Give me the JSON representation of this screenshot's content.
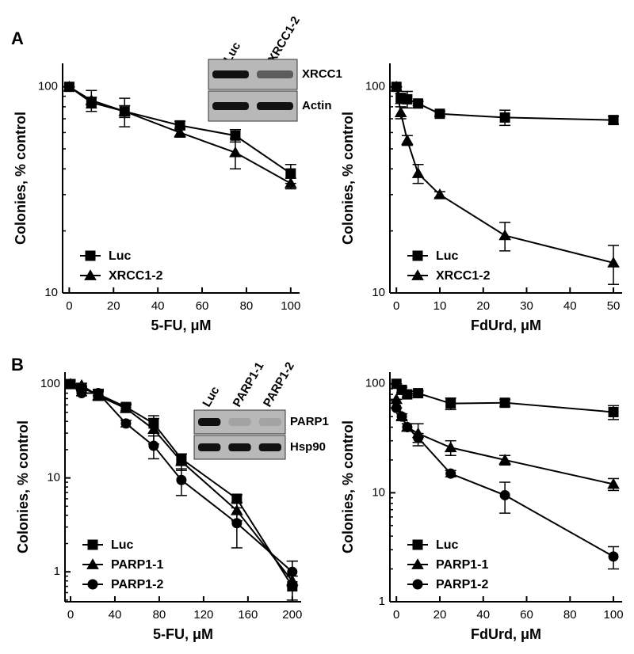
{
  "chart_data": [
    {
      "type": "line",
      "panel": "A",
      "x_label": "5-FU, μM",
      "y_label": "Colonies, % control",
      "log_y": true,
      "legend": "lower left",
      "x": [
        0,
        10,
        25,
        50,
        75,
        100
      ],
      "series": [
        {
          "name": "Luc",
          "marker": "square",
          "color": "#000000",
          "values": [
            100,
            84,
            76,
            65,
            58,
            38
          ],
          "errors": [
            0,
            5,
            12,
            3,
            4,
            4
          ]
        },
        {
          "name": "XRCC1-2",
          "marker": "triangle",
          "color": "#000000",
          "values": [
            100,
            86,
            76,
            60,
            48,
            34
          ],
          "errors": [
            0,
            10,
            5,
            3,
            8,
            2
          ]
        }
      ],
      "xlim": [
        -3,
        104
      ],
      "ylim": [
        10,
        130
      ],
      "xticks": [
        0,
        20,
        40,
        60,
        80,
        100
      ],
      "yticks": [
        10,
        100
      ],
      "inset": {
        "lanes": [
          "Luc",
          "XRCC1-2"
        ],
        "rows": [
          "XRCC1",
          "Actin"
        ]
      }
    },
    {
      "type": "line",
      "x_label": "FdUrd, μM",
      "y_label": "Colonies, % control",
      "log_y": true,
      "legend": "lower left",
      "x": [
        0,
        1,
        2.5,
        5,
        10,
        25,
        50
      ],
      "series": [
        {
          "name": "Luc",
          "marker": "square",
          "color": "#000000",
          "values": [
            100,
            88,
            87,
            83,
            74,
            71,
            69
          ],
          "errors": [
            0,
            5,
            8,
            2,
            2,
            6,
            3
          ]
        },
        {
          "name": "XRCC1-2",
          "marker": "triangle",
          "color": "#000000",
          "values": [
            100,
            75,
            55,
            38,
            30,
            19,
            14
          ],
          "errors": [
            0,
            5,
            3,
            4,
            1,
            3,
            3
          ]
        }
      ],
      "xlim": [
        -1.5,
        52
      ],
      "ylim": [
        10,
        130
      ],
      "xticks": [
        0,
        10,
        20,
        30,
        40,
        50
      ],
      "yticks": [
        10,
        100
      ]
    },
    {
      "type": "line",
      "panel": "B",
      "x_label": "5-FU, μM",
      "y_label": "Colonies, % control",
      "log_y": true,
      "legend": "lower left",
      "x": [
        0,
        10,
        25,
        50,
        75,
        100,
        150,
        200
      ],
      "series": [
        {
          "name": "Luc",
          "marker": "square",
          "color": "#000000",
          "values": [
            100,
            90,
            78,
            57,
            38,
            16,
            6,
            0.7
          ],
          "errors": [
            0,
            5,
            10,
            5,
            8,
            2,
            0.6,
            0.2
          ]
        },
        {
          "name": "PARP1-1",
          "marker": "triangle",
          "color": "#000000",
          "values": [
            100,
            97,
            75,
            55,
            33,
            15,
            4.5,
            0.8
          ],
          "errors": [
            0,
            5,
            8,
            5,
            10,
            3,
            1,
            0.5
          ]
        },
        {
          "name": "PARP1-2",
          "marker": "circle",
          "color": "#000000",
          "values": [
            100,
            80,
            80,
            38,
            22,
            9.5,
            3.3,
            1.0
          ],
          "errors": [
            0,
            5,
            5,
            3,
            6,
            3,
            1.5,
            0.3
          ]
        }
      ],
      "xlim": [
        -5,
        208
      ],
      "ylim": [
        0.48,
        134
      ],
      "xticks": [
        0,
        40,
        80,
        120,
        160,
        200
      ],
      "yticks": [
        1,
        10,
        100
      ],
      "inset": {
        "lanes": [
          "Luc",
          "PARP1-1",
          "PARP1-2"
        ],
        "rows": [
          "PARP1",
          "Hsp90"
        ]
      }
    },
    {
      "type": "line",
      "x_label": "FdUrd, μM",
      "y_label": "Colonies, % control",
      "log_y": true,
      "legend": "lower left",
      "x": [
        0,
        2.5,
        5,
        10,
        25,
        50,
        100
      ],
      "series": [
        {
          "name": "Luc",
          "marker": "square",
          "color": "#000000",
          "values": [
            100,
            88,
            80,
            82,
            66,
            67,
            55
          ],
          "errors": [
            0,
            5,
            5,
            4,
            8,
            5,
            8
          ]
        },
        {
          "name": "PARP1-1",
          "marker": "triangle",
          "color": "#000000",
          "values": [
            72,
            50,
            40,
            35,
            26,
            20,
            12
          ],
          "errors": [
            0,
            3,
            3,
            8,
            4,
            2,
            1.5
          ]
        },
        {
          "name": "PARP1-2",
          "marker": "circle",
          "color": "#000000",
          "values": [
            60,
            50,
            40,
            32,
            15,
            9.5,
            2.6
          ],
          "errors": [
            0,
            3,
            3,
            3,
            1,
            3,
            0.6
          ]
        }
      ],
      "xlim": [
        -3,
        104
      ],
      "ylim": [
        1,
        128
      ],
      "xticks": [
        0,
        20,
        40,
        60,
        80,
        100
      ],
      "yticks": [
        1,
        10,
        100
      ]
    }
  ]
}
